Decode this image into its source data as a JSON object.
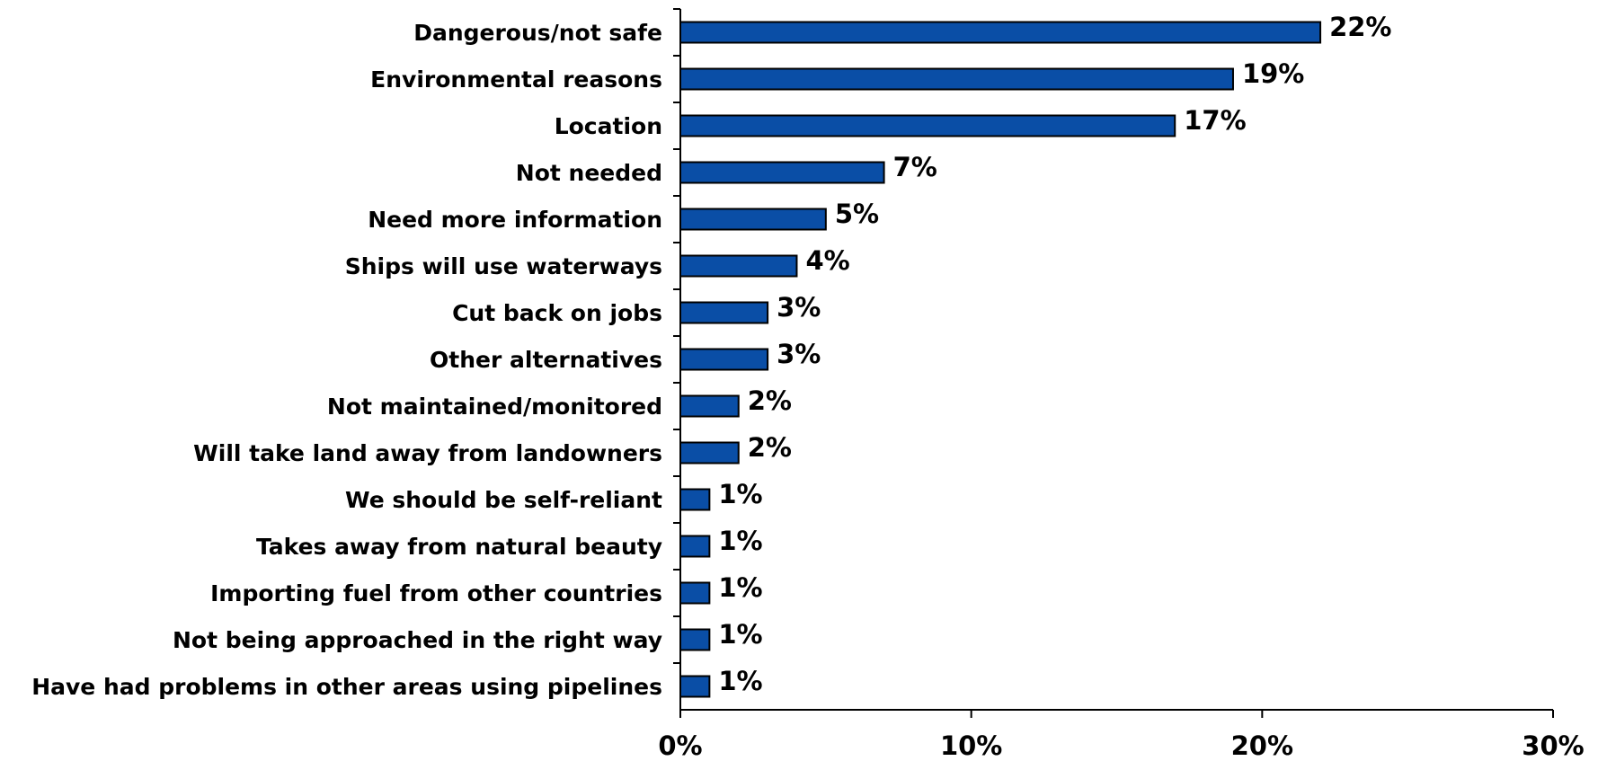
{
  "chart_data": {
    "type": "bar",
    "orientation": "horizontal",
    "categories": [
      "Dangerous/not safe",
      "Environmental reasons",
      "Location",
      "Not needed",
      "Need more information",
      "Ships will use waterways",
      "Cut back on jobs",
      "Other alternatives",
      "Not maintained/monitored",
      "Will take land away from landowners",
      "We should be self-reliant",
      "Takes away from natural beauty",
      "Importing fuel from other countries",
      "Not being approached in the right way",
      "Have had problems in other areas using pipelines"
    ],
    "values": [
      22,
      19,
      17,
      7,
      5,
      4,
      3,
      3,
      2,
      2,
      1,
      1,
      1,
      1,
      1
    ],
    "value_labels": [
      "22%",
      "19%",
      "17%",
      "7%",
      "5%",
      "4%",
      "3%",
      "3%",
      "2%",
      "2%",
      "1%",
      "1%",
      "1%",
      "1%",
      "1%"
    ],
    "xlim": [
      0,
      30
    ],
    "x_ticks": [
      0,
      10,
      20,
      30
    ],
    "x_tick_labels": [
      "0%",
      "10%",
      "20%",
      "30%"
    ],
    "grid": false,
    "legend": "none",
    "bar_color": "#0A4EA6",
    "title": "",
    "xlabel": "",
    "ylabel": ""
  }
}
